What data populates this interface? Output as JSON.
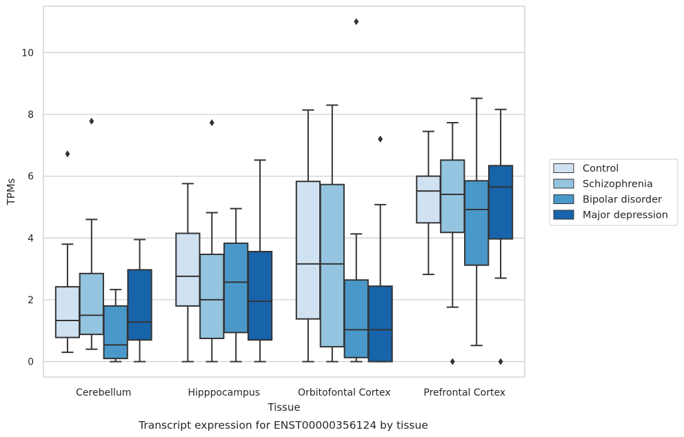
{
  "caption": "Transcript expression for ENST00000356124 by tissue",
  "colors": {
    "Control": "#d0e1f2",
    "Schizophrenia": "#94c4df",
    "Bipolar disorder": "#4a98c9",
    "Major depression": "#1764ab",
    "edge": "#333333",
    "grid": "#cccccc",
    "frame": "#cccccc"
  },
  "chart_data": {
    "type": "box",
    "title": "",
    "xlabel": "Tissue",
    "ylabel": "TPMs",
    "ylim": [
      -0.5,
      11.5
    ],
    "yticks": [
      0,
      2,
      4,
      6,
      8,
      10
    ],
    "grid": true,
    "legend_position": "right",
    "categories": [
      "Cerebellum",
      "Hipppocampus",
      "Orbitofontal Cortex",
      "Prefrontal Cortex"
    ],
    "series": [
      {
        "name": "Control",
        "boxes": [
          {
            "whislo": 0.3,
            "q1": 0.78,
            "med": 1.33,
            "q3": 2.42,
            "whishi": 3.8,
            "fliers": [
              6.72
            ]
          },
          {
            "whislo": 0.0,
            "q1": 1.8,
            "med": 2.76,
            "q3": 4.15,
            "whishi": 5.76,
            "fliers": []
          },
          {
            "whislo": 0.0,
            "q1": 1.38,
            "med": 3.16,
            "q3": 5.83,
            "whishi": 8.14,
            "fliers": []
          },
          {
            "whislo": 2.82,
            "q1": 4.49,
            "med": 5.52,
            "q3": 6.0,
            "whishi": 7.45,
            "fliers": []
          }
        ]
      },
      {
        "name": "Schizophrenia",
        "boxes": [
          {
            "whislo": 0.4,
            "q1": 0.88,
            "med": 1.5,
            "q3": 2.85,
            "whishi": 4.6,
            "fliers": [
              7.78
            ]
          },
          {
            "whislo": 0.0,
            "q1": 0.75,
            "med": 2.0,
            "q3": 3.47,
            "whishi": 4.82,
            "fliers": [
              7.73
            ]
          },
          {
            "whislo": 0.0,
            "q1": 0.48,
            "med": 3.16,
            "q3": 5.73,
            "whishi": 8.3,
            "fliers": []
          },
          {
            "whislo": 1.76,
            "q1": 4.18,
            "med": 5.41,
            "q3": 6.52,
            "whishi": 7.73,
            "fliers": [
              0.0
            ]
          }
        ]
      },
      {
        "name": "Bipolar disorder",
        "boxes": [
          {
            "whislo": 0.0,
            "q1": 0.1,
            "med": 0.54,
            "q3": 1.8,
            "whishi": 2.33,
            "fliers": []
          },
          {
            "whislo": 0.0,
            "q1": 0.94,
            "med": 2.57,
            "q3": 3.83,
            "whishi": 4.95,
            "fliers": []
          },
          {
            "whislo": 0.0,
            "q1": 0.13,
            "med": 1.03,
            "q3": 2.64,
            "whishi": 4.13,
            "fliers": [
              11.0
            ]
          },
          {
            "whislo": 0.52,
            "q1": 3.12,
            "med": 4.92,
            "q3": 5.85,
            "whishi": 8.52,
            "fliers": []
          }
        ]
      },
      {
        "name": "Major depression",
        "boxes": [
          {
            "whislo": 0.0,
            "q1": 0.7,
            "med": 1.28,
            "q3": 2.97,
            "whishi": 3.95,
            "fliers": []
          },
          {
            "whislo": 0.0,
            "q1": 0.7,
            "med": 1.95,
            "q3": 3.56,
            "whishi": 6.52,
            "fliers": []
          },
          {
            "whislo": 0.0,
            "q1": 0.0,
            "med": 1.03,
            "q3": 2.44,
            "whishi": 5.08,
            "fliers": [
              7.2
            ]
          },
          {
            "whislo": 2.7,
            "q1": 3.97,
            "med": 5.65,
            "q3": 6.34,
            "whishi": 8.16,
            "fliers": [
              0.0
            ]
          }
        ]
      }
    ]
  }
}
